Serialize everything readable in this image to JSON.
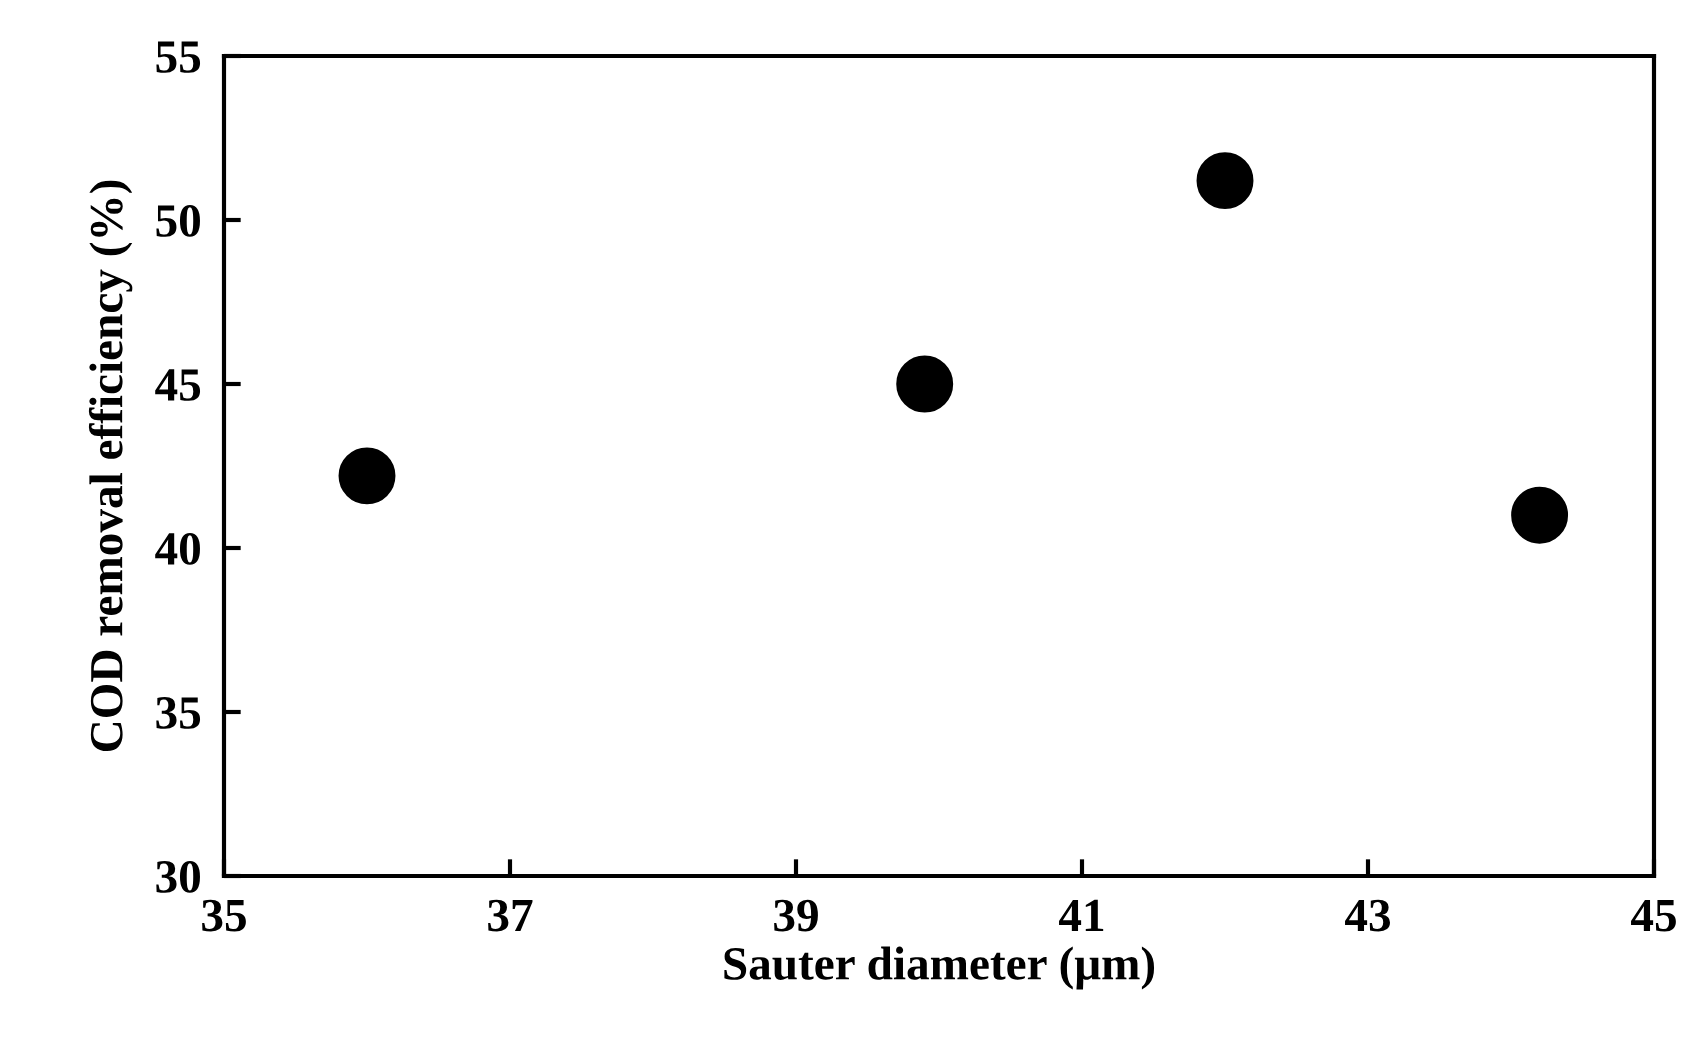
{
  "chart_data": {
    "type": "scatter",
    "xlabel": "Sauter diameter (μm)",
    "ylabel": "COD removal efficiency (%)",
    "x": [
      36.0,
      39.9,
      42.0,
      44.2
    ],
    "series": [
      {
        "color": "#000000",
        "values": [
          42.2,
          45.0,
          51.2,
          41.0
        ]
      }
    ],
    "xlim": [
      35,
      45
    ],
    "xticks": [
      35,
      37,
      39,
      41,
      43,
      45
    ],
    "ylim": [
      30,
      55
    ],
    "yticks": [
      30,
      35,
      40,
      45,
      50,
      55
    ],
    "marker": "circle",
    "grid": false,
    "legend": false
  }
}
